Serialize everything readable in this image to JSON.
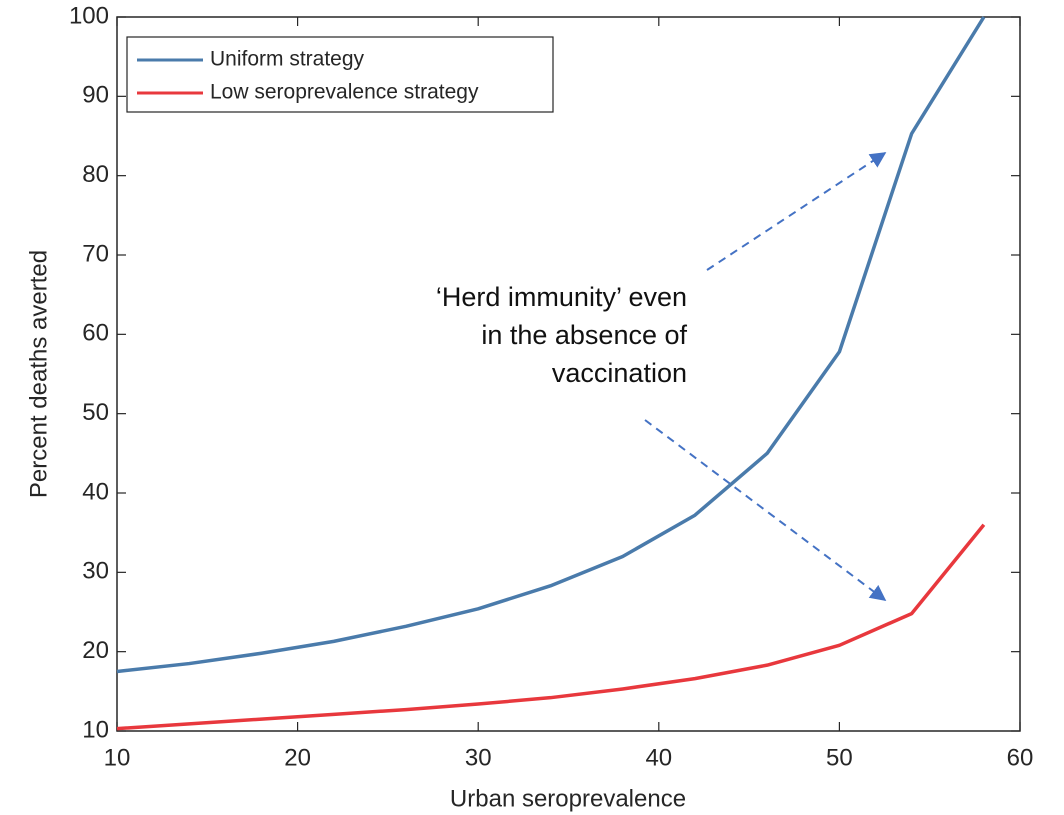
{
  "chart_data": {
    "type": "line",
    "xlabel": "Urban seroprevalence",
    "ylabel": "Percent deaths averted",
    "x": [
      10,
      14,
      18,
      22,
      26,
      30,
      34,
      38,
      42,
      46,
      50,
      54,
      58
    ],
    "series": [
      {
        "name": "Uniform strategy",
        "color": "#4a7bab",
        "values": [
          17.5,
          18.5,
          19.8,
          21.3,
          23.2,
          25.4,
          28.3,
          32,
          37.2,
          45,
          57.8,
          85.3,
          100
        ]
      },
      {
        "name": "Low seroprevalence strategy",
        "color": "#e8383d",
        "values": [
          10.3,
          10.9,
          11.5,
          12.1,
          12.7,
          13.4,
          14.2,
          15.3,
          16.6,
          18.3,
          20.8,
          24.8,
          36
        ]
      }
    ],
    "annotation": [
      "‘Herd immunity’ even",
      "in the absence of",
      "vaccination"
    ],
    "xlim": [
      10,
      60
    ],
    "xticks": [
      10,
      20,
      30,
      40,
      50,
      60
    ],
    "ylim": [
      10,
      100
    ],
    "yticks": [
      10,
      20,
      30,
      40,
      50,
      60,
      70,
      80,
      90,
      100
    ],
    "legend": "upper left",
    "grid": false
  }
}
